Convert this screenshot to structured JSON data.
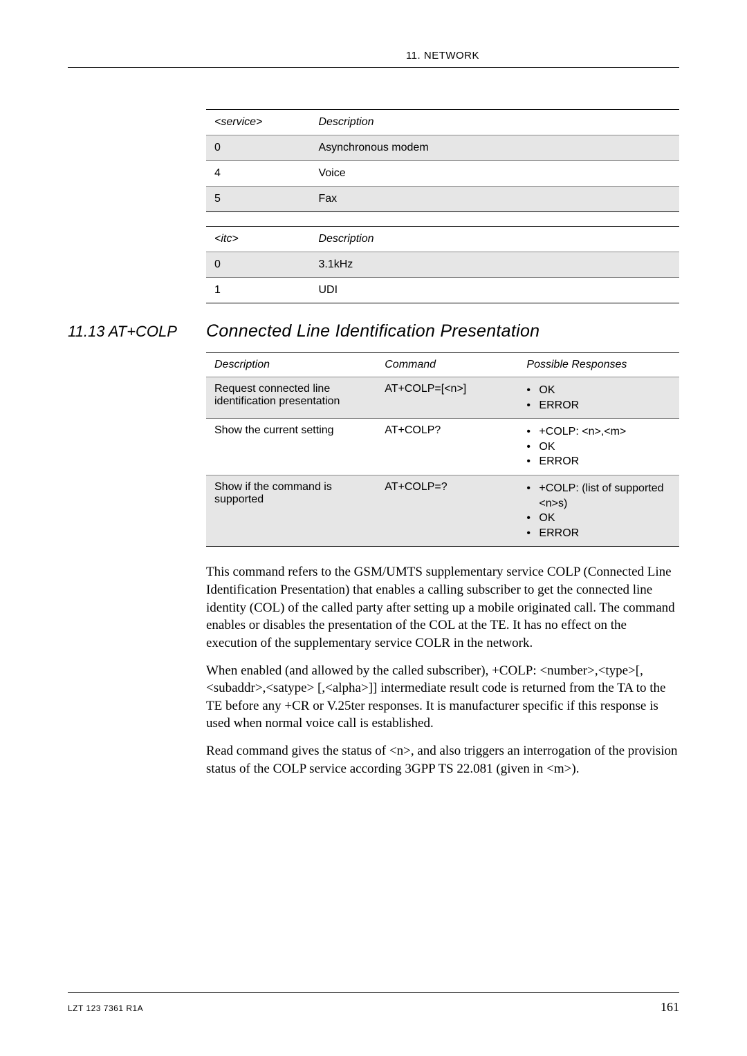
{
  "header": {
    "chapter": "11. NETWORK"
  },
  "table_service": {
    "headers": [
      "<service>",
      "Description"
    ],
    "rows": [
      [
        "0",
        "Asynchronous modem"
      ],
      [
        "4",
        "Voice"
      ],
      [
        "5",
        "Fax"
      ]
    ]
  },
  "table_itc": {
    "headers": [
      "<itc>",
      "Description"
    ],
    "rows": [
      [
        "0",
        "3.1kHz"
      ],
      [
        "1",
        "UDI"
      ]
    ]
  },
  "section": {
    "number": "11.13 AT+COLP",
    "title": "Connected Line Identification Presentation"
  },
  "cmd_table": {
    "headers": [
      "Description",
      "Command",
      "Possible Responses"
    ],
    "rows": [
      {
        "desc": "Request connected line identification presentation",
        "cmd": "AT+COLP=[<n>]",
        "resp": [
          "OK",
          "ERROR"
        ]
      },
      {
        "desc": "Show the current setting",
        "cmd": "AT+COLP?",
        "resp": [
          "+COLP: <n>,<m>",
          "OK",
          "ERROR"
        ]
      },
      {
        "desc": "Show if the command is supported",
        "cmd": "AT+COLP=?",
        "resp": [
          "+COLP: (list of supported <n>s)",
          "OK",
          "ERROR"
        ]
      }
    ]
  },
  "paragraphs": {
    "p1": "This command refers to the GSM/UMTS supplementary service COLP (Connected Line Identification Presentation) that enables a calling subscriber to get the connected line identity (COL) of the called party after setting up a mobile originated call. The command enables or disables the presentation of the COL at the TE. It has no effect on the execution of the supplementary service COLR in the network.",
    "p2": "When enabled (and allowed by the called subscriber), +COLP: <number>,<type>[,<subaddr>,<satype> [,<alpha>]] intermediate result code is returned from the TA to the TE before any +CR or V.25ter responses. It is manufacturer specific if this response is used when normal voice call is established.",
    "p3": "Read command gives the status of <n>, and also triggers an interrogation of the provision status of the COLP service according 3GPP TS 22.081 (given in <m>)."
  },
  "footer": {
    "doc_id": "LZT 123 7361 R1A",
    "page": "161"
  }
}
